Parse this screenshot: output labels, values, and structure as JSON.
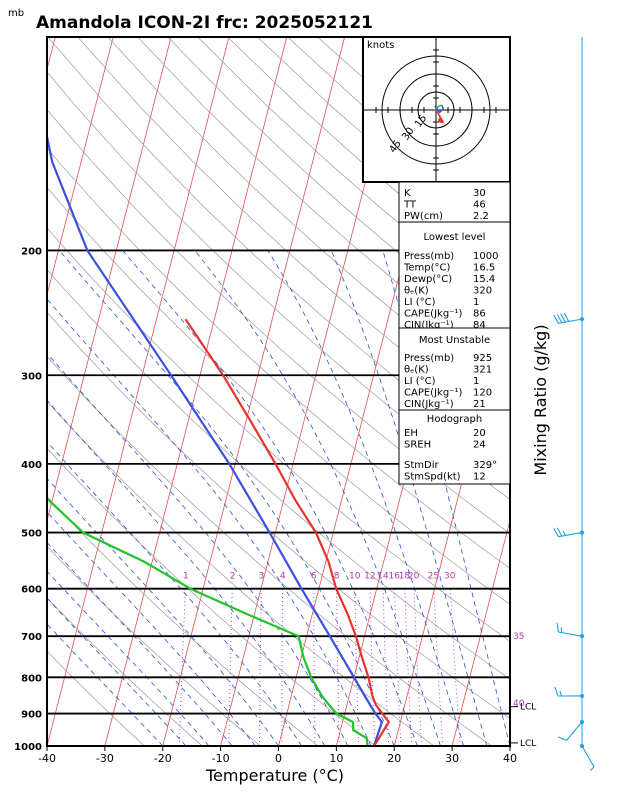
{
  "header": {
    "unit_label": "mb",
    "title": "Amandola ICON-2I frc: 2025052121"
  },
  "colors": {
    "temperature": "#e8322c",
    "dewpoint": "#22c32a",
    "parcel": "#3b4fe0",
    "isotherm": "#e05050",
    "dry_adiabat": "#9a9a9a",
    "moist_adiabat": "#2f4fd6",
    "mixing_ratio": "#b03ab0",
    "wind_barb": "#1fa0e0"
  },
  "chart_data": {
    "type": "line",
    "chart_kind": "skew-T log-P",
    "xlabel": "Temperature (°C)",
    "ylabel_right": "Mixing Ratio (g/kg)",
    "xlim": [
      -40,
      40
    ],
    "ylim": [
      1000,
      100
    ],
    "pressure_ticks": [
      200,
      300,
      400,
      500,
      600,
      700,
      800,
      900,
      1000
    ],
    "temperature_ticks": [
      -40,
      -30,
      -20,
      -10,
      0,
      10,
      20,
      30,
      40
    ],
    "mixing_ratio_labels": [
      "1",
      "2",
      "3",
      "4",
      "6",
      "8",
      "10",
      "12",
      "14",
      "16",
      "18",
      "20",
      "25",
      "30"
    ],
    "theta_e_labels": [
      {
        "text": "35",
        "p": 700
      },
      {
        "text": "40",
        "p": 870
      }
    ],
    "lcl_labels": [
      {
        "text": "LCL",
        "p": 880
      },
      {
        "text": "LCL",
        "p": 990
      }
    ],
    "series": [
      {
        "name": "temperature",
        "p": [
          1000,
          975,
          950,
          925,
          900,
          875,
          850,
          800,
          750,
          700,
          650,
          600,
          550,
          500,
          450,
          400,
          350,
          300,
          250
        ],
        "t": [
          16.5,
          17.0,
          17.5,
          18.0,
          16.5,
          15.0,
          14.0,
          12.5,
          10.5,
          8.5,
          6.0,
          3.0,
          0.5,
          -3.0,
          -8.0,
          -13.0,
          -19.0,
          -26.0,
          -35.0
        ]
      },
      {
        "name": "dewpoint",
        "p": [
          1000,
          975,
          950,
          925,
          900,
          875,
          850,
          800,
          750,
          700,
          650,
          600,
          550,
          500,
          450,
          400,
          350,
          300,
          250
        ],
        "t": [
          15.4,
          14.9,
          12.2,
          11.8,
          8.6,
          6.9,
          5.3,
          2.6,
          0.4,
          -1.4,
          -11.6,
          -22.2,
          -31.3,
          -43.2,
          -50.6,
          -58.3,
          -66.6,
          -74.2,
          -77.4
        ]
      },
      {
        "name": "parcel",
        "p": [
          1000,
          950,
          925,
          900,
          850,
          800,
          700,
          600,
          500,
          400,
          300,
          200,
          150,
          100
        ],
        "t": [
          16.5,
          16.7,
          16.8,
          15.3,
          12.7,
          10.0,
          4.0,
          -3.0,
          -11.0,
          -21.0,
          -35.0,
          -55.0,
          -65.0,
          -75.0
        ]
      }
    ],
    "hodograph": {
      "title": "knots",
      "ring_labels": [
        "15",
        "30",
        "45"
      ],
      "max_speed": 60,
      "ticks_every": 10,
      "trace_u": [
        0,
        2,
        5,
        6,
        3,
        -1
      ],
      "trace_v": [
        0,
        3,
        4,
        1,
        -2,
        3
      ],
      "storm_motion": {
        "dir": 329,
        "spd": 12
      }
    },
    "wind_barbs": [
      {
        "p": 1000,
        "dir": 150,
        "spd": 5
      },
      {
        "p": 925,
        "dir": 220,
        "spd": 10
      },
      {
        "p": 850,
        "dir": 270,
        "spd": 15
      },
      {
        "p": 700,
        "dir": 280,
        "spd": 15
      },
      {
        "p": 500,
        "dir": 260,
        "spd": 25
      },
      {
        "p": 250,
        "dir": 260,
        "spd": 40
      }
    ],
    "indices": [
      {
        "label": "K",
        "value": "30"
      },
      {
        "label": "TT",
        "value": "46"
      },
      {
        "label": "PW(cm)",
        "value": "2.2"
      }
    ],
    "lowest_level": {
      "header": "Lowest level",
      "rows": [
        {
          "label": "Press(mb)",
          "value": "1000"
        },
        {
          "label": "Temp(°C)",
          "value": "16.5"
        },
        {
          "label": "Dewp(°C)",
          "value": "15.4"
        },
        {
          "label": "θₑ(K)",
          "value": "320"
        },
        {
          "label": "LI (°C)",
          "value": "1"
        },
        {
          "label": "CAPE(Jkg⁻¹)",
          "value": "86"
        },
        {
          "label": "CIN(Jkg⁻¹)",
          "value": "84"
        }
      ]
    },
    "most_unstable": {
      "header": "Most Unstable",
      "rows": [
        {
          "label": "Press(mb)",
          "value": "925"
        },
        {
          "label": "θₑ(K)",
          "value": "321"
        },
        {
          "label": "LI (°C)",
          "value": "1"
        },
        {
          "label": "CAPE(Jkg⁻¹)",
          "value": "120"
        },
        {
          "label": "CIN(Jkg⁻¹)",
          "value": "21"
        }
      ]
    },
    "hodograph_table": {
      "header": "Hodograph",
      "rows": [
        {
          "label": "EH",
          "value": "20"
        },
        {
          "label": "SREH",
          "value": "24"
        },
        {
          "label": "StmDir",
          "value": "329°"
        },
        {
          "label": "StmSpd(kt)",
          "value": "12"
        }
      ]
    }
  }
}
